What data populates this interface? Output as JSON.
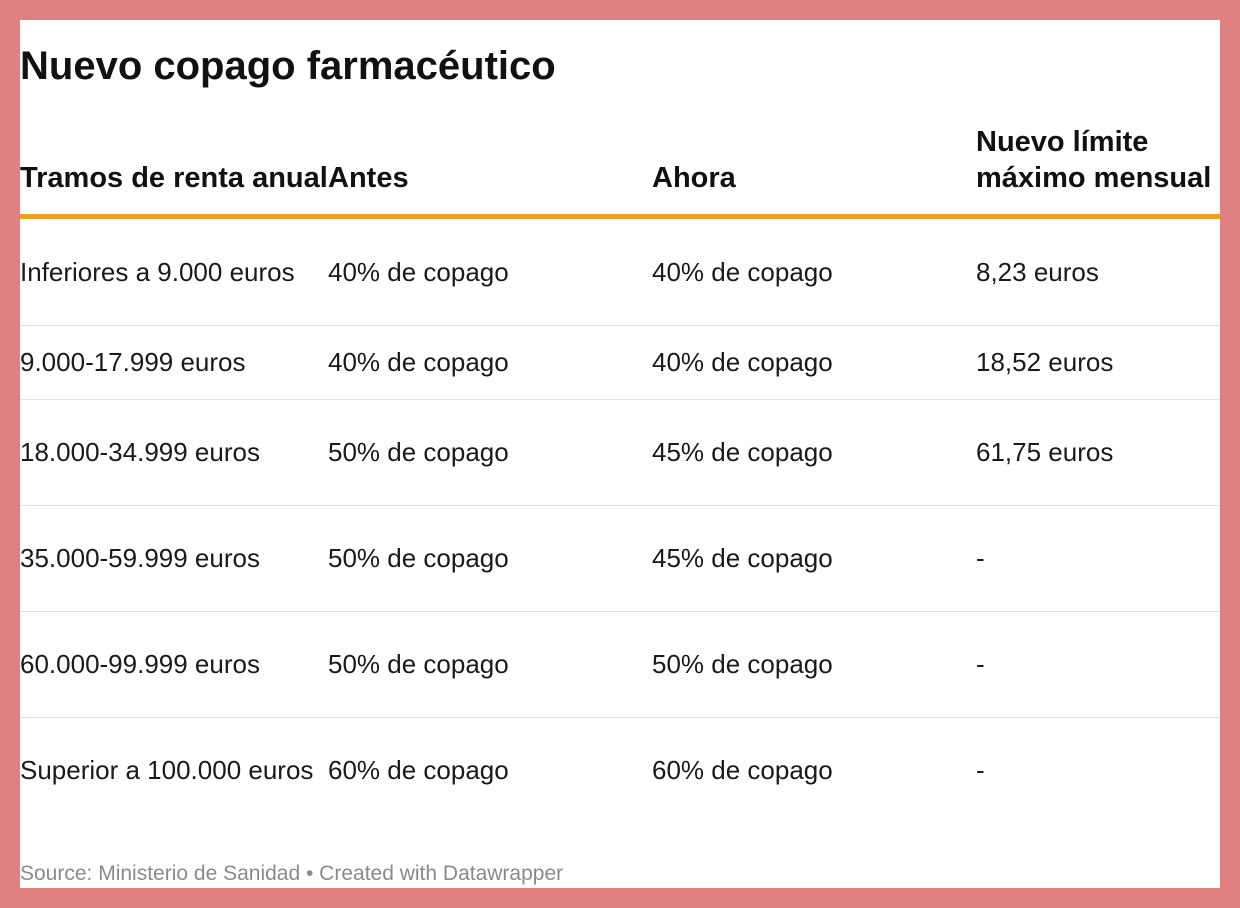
{
  "colors": {
    "page_border": "#e08080",
    "header_rule": "#f0a020",
    "row_divider": "#e2e2e2",
    "source_text": "#8a8a8a"
  },
  "chart_data": {
    "type": "table",
    "title": "Nuevo copago farmacéutico",
    "columns": [
      "Tramos de renta anual",
      "Antes",
      "Ahora",
      "Nuevo límite máximo mensual"
    ],
    "rows": [
      [
        "Inferiores a 9.000 euros",
        "40% de copago",
        "40% de copago",
        "8,23 euros"
      ],
      [
        "9.000-17.999 euros",
        "40% de copago",
        "40% de copago",
        "18,52 euros"
      ],
      [
        "18.000-34.999 euros",
        "50% de copago",
        "45% de copago",
        "61,75 euros"
      ],
      [
        "35.000-59.999 euros",
        "50% de copago",
        "45% de copago",
        "-"
      ],
      [
        "60.000-99.999 euros",
        "50% de copago",
        "50% de copago",
        "-"
      ],
      [
        "Superior a 100.000 euros",
        "60% de copago",
        "60% de copago",
        "-"
      ]
    ],
    "source": "Source: Ministerio de Sanidad • Created with Datawrapper"
  }
}
